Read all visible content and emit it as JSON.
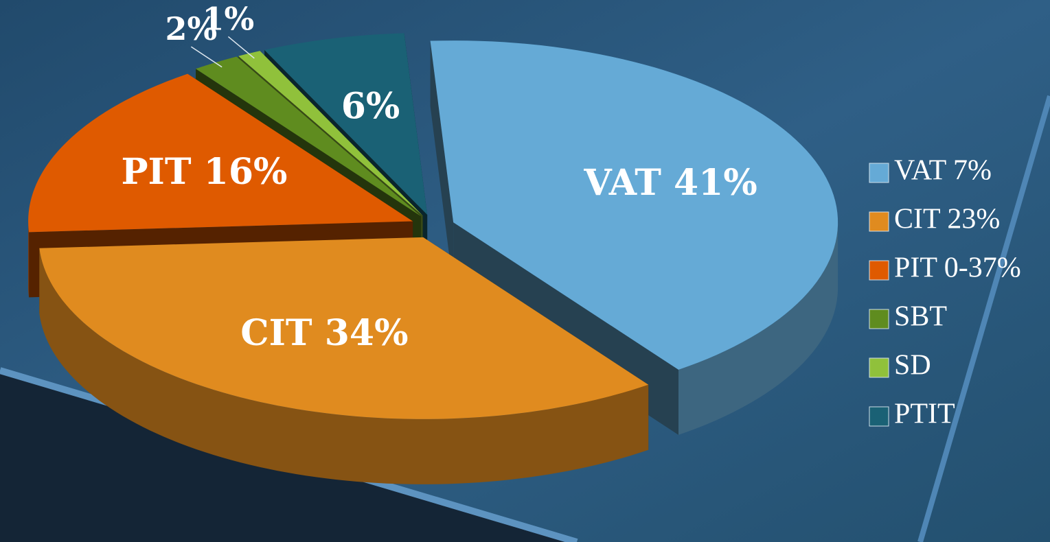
{
  "chart_data": {
    "type": "pie",
    "categories": [
      "VAT 7%",
      "CIT 23%",
      "PIT 0-37%",
      "SBT",
      "SD",
      "PTIT"
    ],
    "values": [
      41,
      34,
      16,
      2,
      1,
      6
    ],
    "value_labels": [
      "VAT 41%",
      "CIT 34%",
      "PIT 16%",
      "2%",
      "1%",
      "6%"
    ],
    "colors": [
      "#65aad6",
      "#e08b1f",
      "#df5a00",
      "#5f8c1f",
      "#90c13b",
      "#1a6175"
    ],
    "legend": "right"
  }
}
